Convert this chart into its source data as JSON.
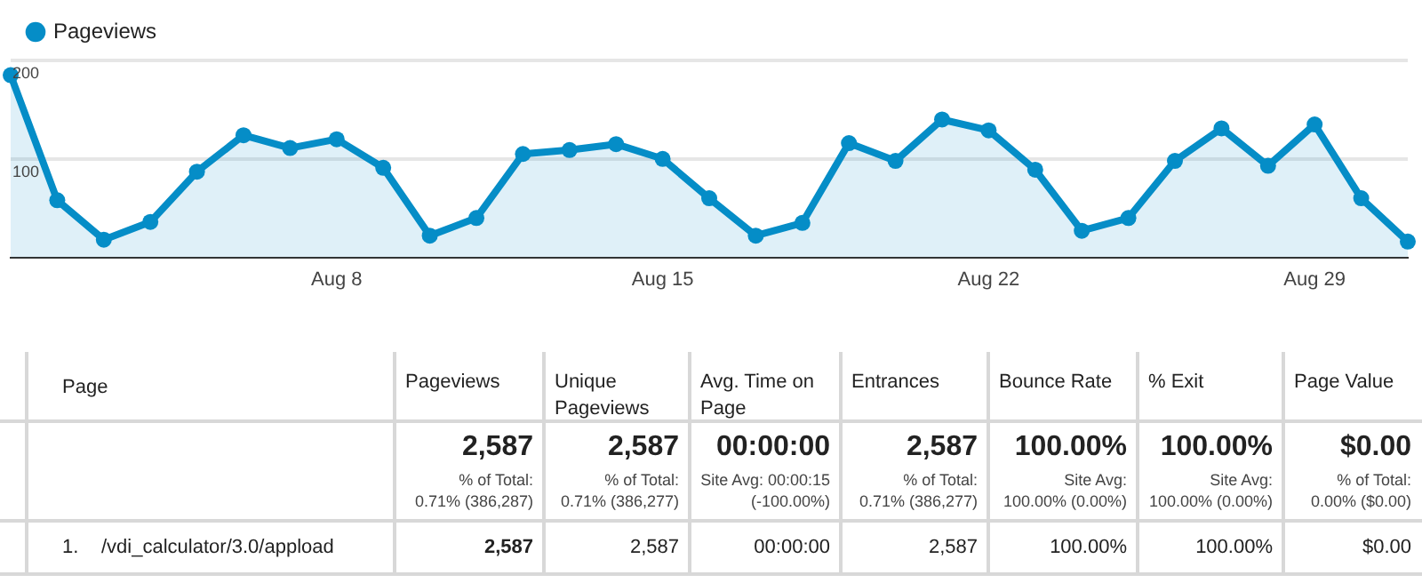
{
  "chart_data": {
    "type": "area",
    "categories": [
      null,
      null,
      null,
      null,
      null,
      null,
      null,
      "Aug 8",
      null,
      null,
      null,
      null,
      null,
      null,
      "Aug 15",
      null,
      null,
      null,
      null,
      null,
      null,
      "Aug 22",
      null,
      null,
      null,
      null,
      null,
      null,
      "Aug 29",
      null,
      null
    ],
    "series": [
      {
        "name": "Pageviews",
        "color": "#058dc7",
        "values": [
          185,
          58,
          18,
          36,
          87,
          124,
          111,
          120,
          91,
          22,
          40,
          105,
          109,
          115,
          100,
          60,
          22,
          35,
          116,
          98,
          140,
          129,
          89,
          27,
          40,
          98,
          131,
          93,
          135,
          60,
          16
        ]
      }
    ],
    "ylim": [
      0,
      200
    ],
    "yticks": [
      100,
      200
    ],
    "grid": "y",
    "legend": "top left",
    "marker": "circle",
    "line_style": "solid",
    "annotations": [
      "Page",
      "Pageviews",
      "Unique Pageviews",
      "Avg. Time on Page",
      "Entrances",
      "Bounce Rate",
      "% Exit",
      "Page Value",
      "2,587",
      "% of Total:",
      "0.71% (386,287)",
      "2,587",
      "% of Total:",
      "0.71% (386,277)",
      "00:00:00",
      "Site Avg: 00:00:15",
      "(-100.00%)",
      "2,587",
      "% of Total:",
      "0.71% (386,277)",
      "100.00%",
      "Site Avg:",
      "100.00% (0.00%)",
      "100.00%",
      "Site Avg:",
      "100.00% (0.00%)",
      "$0.00",
      "% of Total:",
      "0.00% ($0.00)",
      "1.",
      "/vdi_calculator/3.0/appload",
      "2,587",
      "2,587",
      "00:00:00",
      "2,587",
      "100.00%",
      "100.00%",
      "$0.00"
    ]
  }
}
